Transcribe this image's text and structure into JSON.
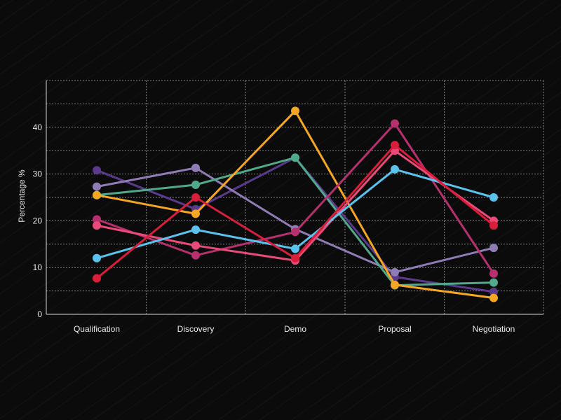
{
  "chart_data": {
    "type": "line",
    "title": "",
    "xlabel": "",
    "ylabel": "Percentage %",
    "categories": [
      "Qualification",
      "Discovery",
      "Demo",
      "Proposal",
      "Negotiation"
    ],
    "ylim": [
      0,
      50
    ],
    "yticks": [
      0,
      10,
      20,
      30,
      40
    ],
    "grid": true,
    "legend": "none",
    "series": [
      {
        "color": "#5b3a8c",
        "values": [
          30.8,
          22.5,
          33.5,
          8.0,
          4.8
        ]
      },
      {
        "color": "#8f7cb5",
        "values": [
          27.3,
          31.3,
          18.2,
          9.0,
          14.2
        ]
      },
      {
        "color": "#4fa98a",
        "values": [
          25.5,
          27.7,
          33.5,
          6.2,
          6.8
        ]
      },
      {
        "color": "#f5a623",
        "values": [
          25.5,
          21.5,
          43.5,
          6.3,
          3.5
        ]
      },
      {
        "color": "#b5306d",
        "values": [
          20.3,
          12.6,
          17.6,
          40.8,
          8.7
        ]
      },
      {
        "color": "#ea4a7a",
        "values": [
          19.0,
          14.7,
          11.5,
          35.0,
          20.0
        ]
      },
      {
        "color": "#5bc2ee",
        "values": [
          12.0,
          18.1,
          14.0,
          31.0,
          25.0
        ]
      },
      {
        "color": "#d81e3a",
        "values": [
          7.7,
          25.0,
          12.0,
          36.2,
          19.0
        ]
      }
    ]
  }
}
